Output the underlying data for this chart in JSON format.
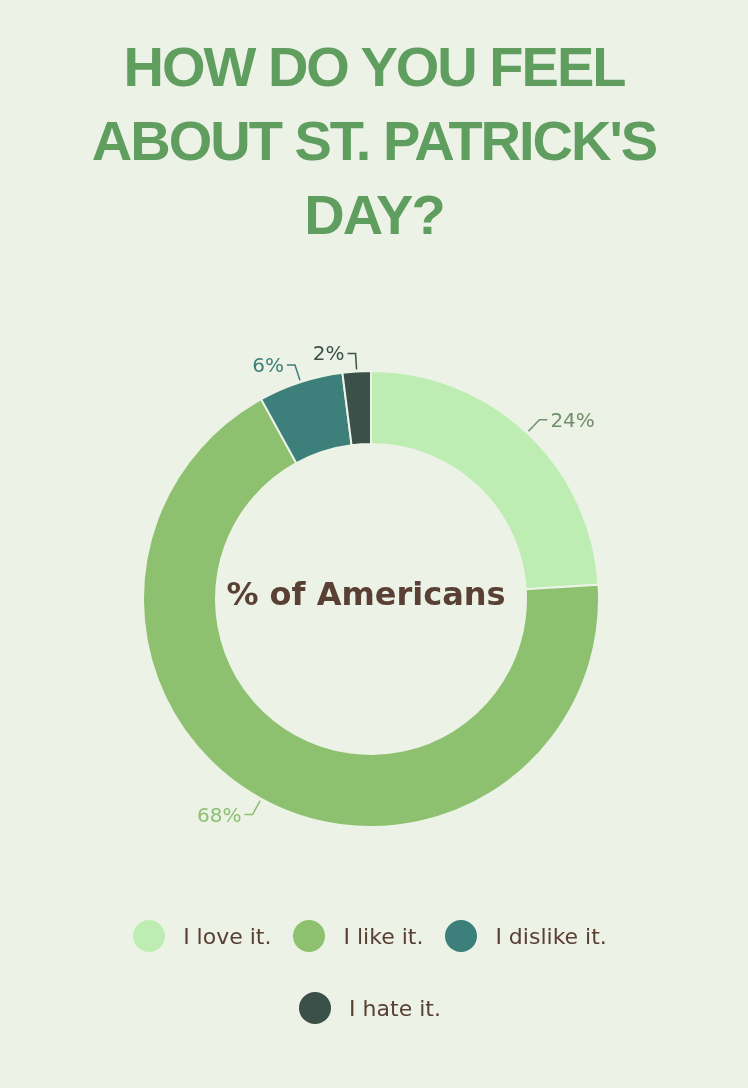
{
  "chart_data": {
    "type": "donut",
    "title": "HOW DO YOU FEEL ABOUT ST. PATRICK'S DAY?",
    "categories": [
      "I love it.",
      "I like it.",
      "I dislike it.",
      "I hate it."
    ],
    "values": [
      24,
      68,
      6,
      2
    ],
    "colors": [
      "#bdedb3",
      "#8dc06f",
      "#3d7f7a",
      "#3b5048"
    ],
    "value_labels": [
      "24%",
      "68%",
      "6%",
      "2%"
    ],
    "annotations": [
      "% of Americans"
    ],
    "legend": "bottom"
  }
}
